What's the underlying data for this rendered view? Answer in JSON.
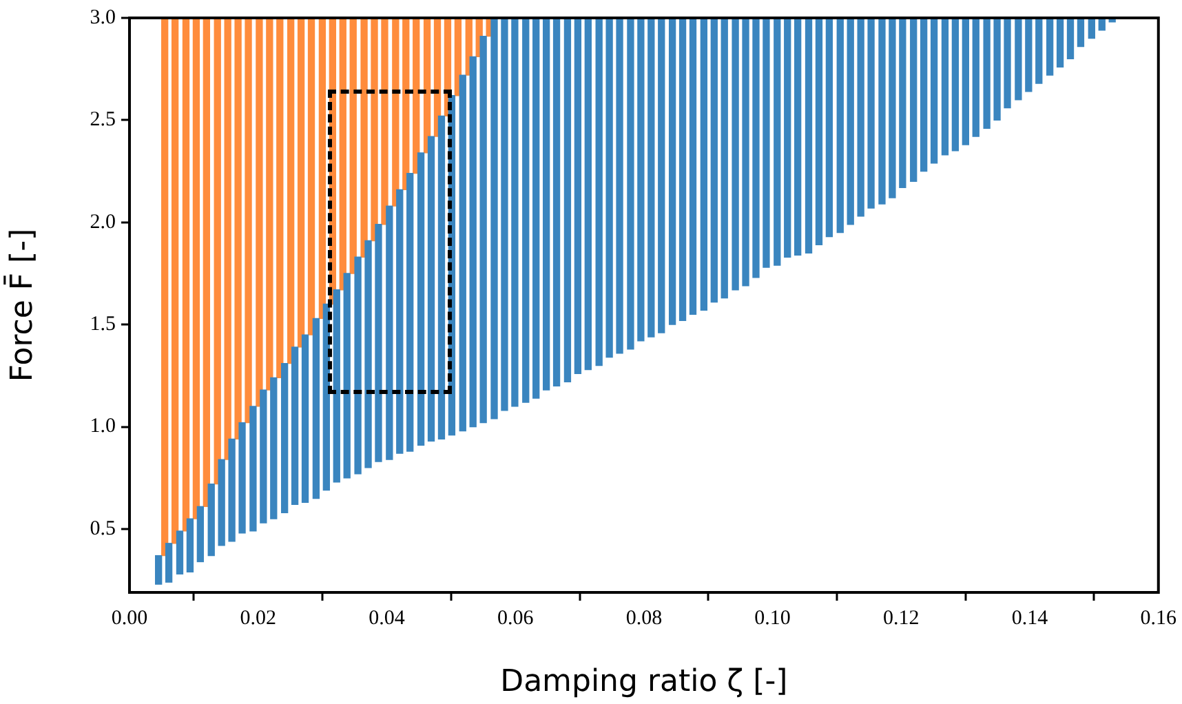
{
  "chart_data": {
    "type": "bar",
    "xlabel": "Damping ratio ζ [-]",
    "ylabel": "Force F̄ [-]",
    "x": [
      0.005,
      0.0066,
      0.0083,
      0.0099,
      0.0115,
      0.0132,
      0.0148,
      0.0164,
      0.018,
      0.0197,
      0.0213,
      0.0229,
      0.0246,
      0.0262,
      0.0278,
      0.0295,
      0.0311,
      0.0327,
      0.0343,
      0.036,
      0.0376,
      0.0392,
      0.0409,
      0.0425,
      0.0441,
      0.0458,
      0.0474,
      0.049,
      0.0506,
      0.0523,
      0.0539,
      0.0555,
      0.0572,
      0.0588,
      0.0604,
      0.0621,
      0.0637,
      0.0653,
      0.0669,
      0.0686,
      0.0702,
      0.0718,
      0.0735,
      0.0751,
      0.0767,
      0.0784,
      0.08,
      0.0816,
      0.0832,
      0.0849,
      0.0865,
      0.0881,
      0.0898,
      0.0914,
      0.093,
      0.0947,
      0.0963,
      0.0979,
      0.0995,
      0.1012,
      0.1028,
      0.1044,
      0.1061,
      0.1077,
      0.1093,
      0.111,
      0.1126,
      0.1142,
      0.1158,
      0.1175,
      0.1191,
      0.1207,
      0.1224,
      0.124,
      0.1256,
      0.1273,
      0.1289,
      0.1305,
      0.1321,
      0.1338,
      0.1354,
      0.137,
      0.1387,
      0.1403,
      0.1419,
      0.1436,
      0.1452,
      0.1468,
      0.1484,
      0.1501,
      0.1517,
      0.1533
    ],
    "series": [
      {
        "color": "#3a85bf",
        "base": [
          0.23,
          0.24,
          0.28,
          0.29,
          0.34,
          0.37,
          0.42,
          0.44,
          0.48,
          0.49,
          0.53,
          0.55,
          0.58,
          0.62,
          0.63,
          0.65,
          0.69,
          0.73,
          0.75,
          0.77,
          0.8,
          0.83,
          0.84,
          0.87,
          0.88,
          0.91,
          0.93,
          0.94,
          0.96,
          0.98,
          1.0,
          1.02,
          1.04,
          1.08,
          1.1,
          1.12,
          1.14,
          1.18,
          1.2,
          1.22,
          1.26,
          1.28,
          1.3,
          1.34,
          1.36,
          1.38,
          1.42,
          1.44,
          1.46,
          1.5,
          1.52,
          1.55,
          1.57,
          1.61,
          1.63,
          1.67,
          1.69,
          1.73,
          1.78,
          1.79,
          1.83,
          1.84,
          1.85,
          1.89,
          1.93,
          1.95,
          1.99,
          2.03,
          2.07,
          2.09,
          2.12,
          2.17,
          2.2,
          2.25,
          2.29,
          2.33,
          2.35,
          2.38,
          2.42,
          2.46,
          2.5,
          2.56,
          2.6,
          2.64,
          2.68,
          2.72,
          2.76,
          2.8,
          2.86,
          2.9,
          2.94,
          2.98
        ],
        "values": [
          0.14,
          0.19,
          0.21,
          0.26,
          0.27,
          0.35,
          0.42,
          0.5,
          0.54,
          0.61,
          0.65,
          0.69,
          0.73,
          0.77,
          0.82,
          0.88,
          0.91,
          0.94,
          1.0,
          1.06,
          1.11,
          1.16,
          1.24,
          1.29,
          1.36,
          1.43,
          1.49,
          1.58,
          1.66,
          1.74,
          1.81,
          1.89,
          1.96,
          1.92,
          1.9,
          1.88,
          1.86,
          1.82,
          1.8,
          1.78,
          1.74,
          1.72,
          1.7,
          1.66,
          1.64,
          1.62,
          1.58,
          1.56,
          1.54,
          1.5,
          1.48,
          1.45,
          1.43,
          1.39,
          1.37,
          1.33,
          1.31,
          1.27,
          1.22,
          1.21,
          1.17,
          1.16,
          1.15,
          1.11,
          1.07,
          1.05,
          1.01,
          0.97,
          0.93,
          0.91,
          0.88,
          0.83,
          0.8,
          0.75,
          0.71,
          0.67,
          0.65,
          0.62,
          0.58,
          0.54,
          0.5,
          0.44,
          0.4,
          0.36,
          0.32,
          0.28,
          0.24,
          0.2,
          0.14,
          0.1,
          0.06,
          0.02
        ]
      },
      {
        "color": "#ff8c3c",
        "base": [
          0.37,
          0.43,
          0.49,
          0.55,
          0.61,
          0.72,
          0.84,
          0.94,
          1.02,
          1.1,
          1.18,
          1.24,
          1.31,
          1.39,
          1.45,
          1.53,
          1.6,
          1.67,
          1.75,
          1.83,
          1.91,
          1.99,
          2.08,
          2.16,
          2.24,
          2.34,
          2.42,
          2.52,
          2.62,
          2.72,
          2.81,
          2.91,
          null,
          null,
          null,
          null,
          null,
          null,
          null,
          null,
          null,
          null,
          null,
          null,
          null,
          null,
          null,
          null,
          null,
          null,
          null,
          null,
          null,
          null,
          null,
          null,
          null,
          null,
          null,
          null,
          null,
          null,
          null,
          null,
          null,
          null,
          null,
          null,
          null,
          null,
          null,
          null,
          null,
          null,
          null,
          null,
          null,
          null,
          null,
          null,
          null,
          null,
          null,
          null,
          null,
          null,
          null,
          null,
          null,
          null,
          null,
          null
        ],
        "values": [
          2.63,
          2.57,
          2.51,
          2.45,
          2.39,
          2.28,
          2.16,
          2.06,
          1.98,
          1.9,
          1.82,
          1.76,
          1.69,
          1.61,
          1.55,
          1.47,
          1.4,
          1.33,
          1.25,
          1.17,
          1.09,
          1.01,
          0.92,
          0.84,
          0.76,
          0.66,
          0.58,
          0.48,
          0.38,
          0.28,
          0.19,
          0.09,
          null,
          null,
          null,
          null,
          null,
          null,
          null,
          null,
          null,
          null,
          null,
          null,
          null,
          null,
          null,
          null,
          null,
          null,
          null,
          null,
          null,
          null,
          null,
          null,
          null,
          null,
          null,
          null,
          null,
          null,
          null,
          null,
          null,
          null,
          null,
          null,
          null,
          null,
          null,
          null,
          null,
          null,
          null,
          null,
          null,
          null,
          null,
          null,
          null,
          null,
          null,
          null,
          null,
          null,
          null,
          null,
          null,
          null,
          null,
          null
        ]
      }
    ],
    "xlim": [
      0,
      0.16
    ],
    "xticks": [
      {
        "value": 0,
        "label": "0.00"
      },
      {
        "value": 0.02,
        "label": "0.02"
      },
      {
        "value": 0.04,
        "label": "0.04"
      },
      {
        "value": 0.06,
        "label": "0.06"
      },
      {
        "value": 0.08,
        "label": "0.08"
      },
      {
        "value": 0.1,
        "label": "0.10"
      },
      {
        "value": 0.12,
        "label": "0.12"
      },
      {
        "value": 0.14,
        "label": "0.14"
      },
      {
        "value": 0.16,
        "label": "0.16"
      }
    ],
    "ylim": [
      0.19,
      3.0
    ],
    "yticks": [
      0.5,
      {
        "value": 1,
        "label": "1.0"
      },
      1.5,
      {
        "value": 2,
        "label": "2.0"
      },
      2.5,
      {
        "value": 3,
        "label": "3.0"
      }
    ]
  }
}
